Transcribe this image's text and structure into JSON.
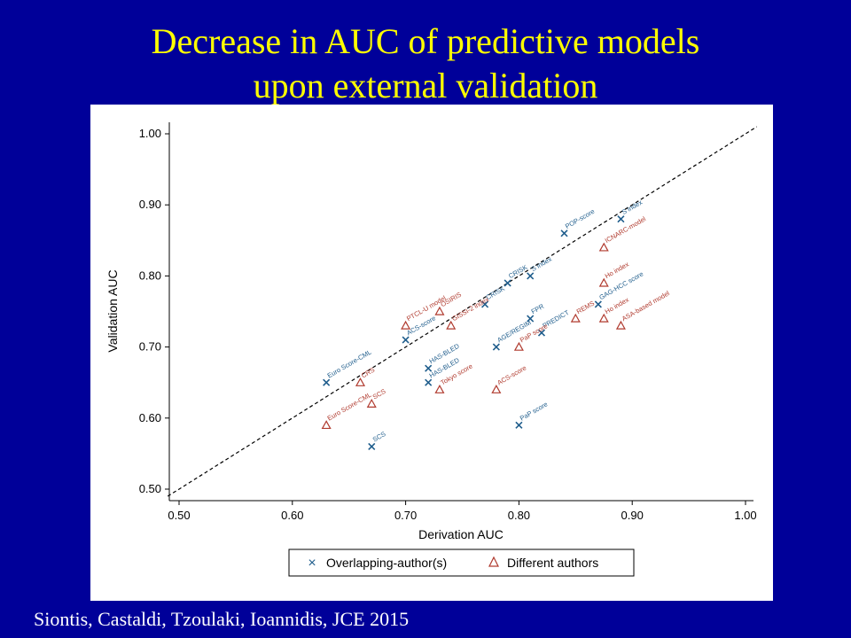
{
  "slide": {
    "title_line1": "Decrease in AUC of predictive models",
    "title_line2": "upon external validation",
    "footer": "Siontis, Castaldi, Tzoulaki, Ioannidis, JCE 2015"
  },
  "colors": {
    "background": "#000099",
    "title": "#ffff00",
    "overlap": "#1f5d8c",
    "different": "#b03a2e"
  },
  "chart_data": {
    "type": "scatter",
    "xlabel": "Derivation AUC",
    "ylabel": "Validation AUC",
    "xlim": [
      0.5,
      1.0
    ],
    "ylim": [
      0.5,
      1.0
    ],
    "xticks": [
      "0.50",
      "0.60",
      "0.70",
      "0.80",
      "0.90",
      "1.00"
    ],
    "yticks": [
      "0.50",
      "0.60",
      "0.70",
      "0.80",
      "0.90",
      "1.00"
    ],
    "diagonal": "dashed y = x",
    "legend_position": "bottom",
    "series": [
      {
        "name": "Overlapping-author(s)",
        "marker": "x",
        "points": [
          {
            "x": 0.63,
            "y": 0.65,
            "label": "Euro Score-CML"
          },
          {
            "x": 0.67,
            "y": 0.56,
            "label": "SCS"
          },
          {
            "x": 0.7,
            "y": 0.71,
            "label": "ACS-score"
          },
          {
            "x": 0.72,
            "y": 0.67,
            "label": "HAS-BLED"
          },
          {
            "x": 0.72,
            "y": 0.65,
            "label": "HAS-BLED"
          },
          {
            "x": 0.77,
            "y": 0.76,
            "label": "CRISK"
          },
          {
            "x": 0.78,
            "y": 0.7,
            "label": "AGE/REGIM"
          },
          {
            "x": 0.79,
            "y": 0.79,
            "label": "CRISK"
          },
          {
            "x": 0.81,
            "y": 0.74,
            "label": "FPR"
          },
          {
            "x": 0.82,
            "y": 0.72,
            "label": "PREDICT"
          },
          {
            "x": 0.81,
            "y": 0.8,
            "label": "S index"
          },
          {
            "x": 0.8,
            "y": 0.59,
            "label": "PaP score"
          },
          {
            "x": 0.84,
            "y": 0.86,
            "label": "POP-score"
          },
          {
            "x": 0.87,
            "y": 0.76,
            "label": "GAG-HCC score"
          },
          {
            "x": 0.89,
            "y": 0.88,
            "label": "S index"
          }
        ]
      },
      {
        "name": "Different authors",
        "marker": "triangle",
        "points": [
          {
            "x": 0.63,
            "y": 0.59,
            "label": "Euro Score-CML"
          },
          {
            "x": 0.66,
            "y": 0.65,
            "label": "CRS"
          },
          {
            "x": 0.67,
            "y": 0.62,
            "label": "SCS"
          },
          {
            "x": 0.7,
            "y": 0.73,
            "label": "PTCL-U model"
          },
          {
            "x": 0.73,
            "y": 0.75,
            "label": "OSIRIS"
          },
          {
            "x": 0.74,
            "y": 0.73,
            "label": "GISSI-2 index"
          },
          {
            "x": 0.73,
            "y": 0.64,
            "label": "Tokyo score"
          },
          {
            "x": 0.78,
            "y": 0.64,
            "label": "ACS-score"
          },
          {
            "x": 0.8,
            "y": 0.7,
            "label": "PaP score"
          },
          {
            "x": 0.85,
            "y": 0.74,
            "label": "REMS"
          },
          {
            "x": 0.875,
            "y": 0.84,
            "label": "ICNARC-model"
          },
          {
            "x": 0.875,
            "y": 0.79,
            "label": "Ho index"
          },
          {
            "x": 0.875,
            "y": 0.74,
            "label": "Ho index"
          },
          {
            "x": 0.89,
            "y": 0.73,
            "label": "ASA-based model"
          }
        ]
      }
    ]
  }
}
